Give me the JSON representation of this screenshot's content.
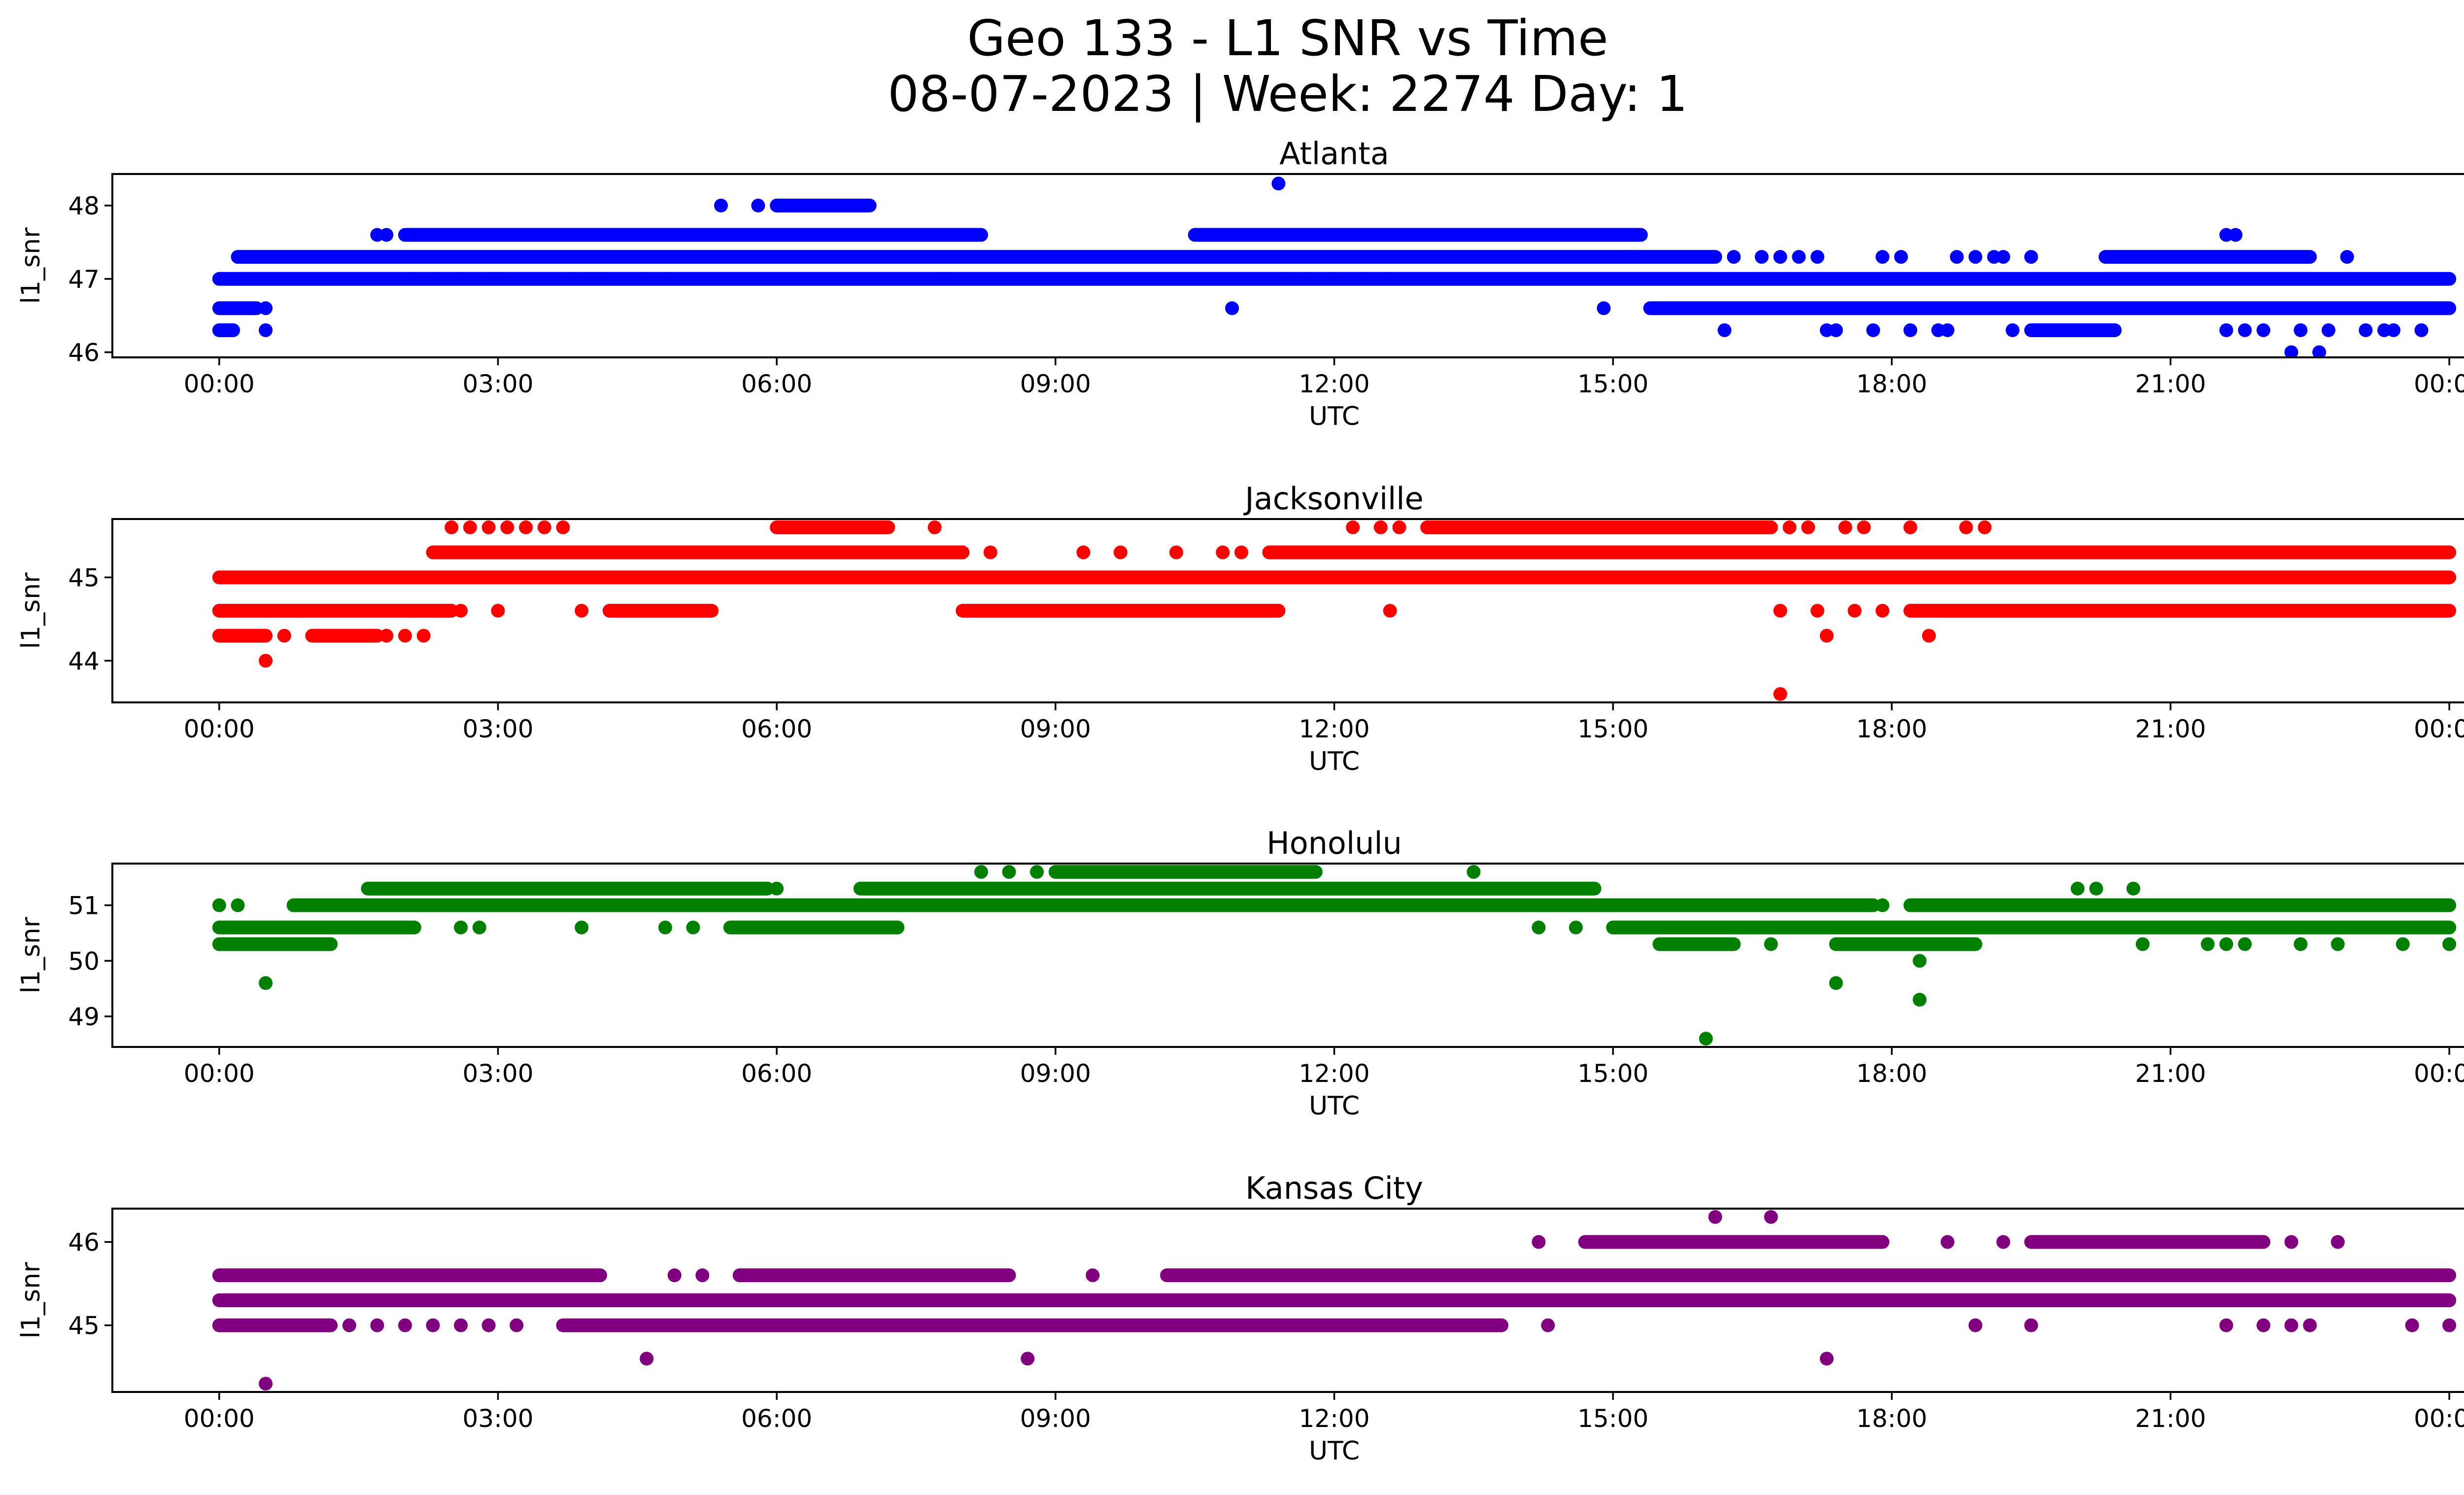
{
  "figure": {
    "title_line1": "Geo 133 - L1 SNR vs Time",
    "title_line2": "08-07-2023 | Week: 2274 Day: 1"
  },
  "chart_data": [
    {
      "type": "scatter",
      "title": "Atlanta",
      "xlabel": "UTC",
      "ylabel": "l1_snr",
      "color": "#0000ff",
      "xlim_hours": [
        -1.15,
        25.15
      ],
      "ylim": [
        45.93,
        48.43
      ],
      "yticks": [
        46,
        47,
        48
      ],
      "xtick_labels": [
        "00:00",
        "03:00",
        "06:00",
        "09:00",
        "12:00",
        "15:00",
        "18:00",
        "21:00",
        "00:00"
      ],
      "bands": [
        {
          "y": 47.3,
          "from": 0.2,
          "to": 16.1
        },
        {
          "y": 47.0,
          "from": 0.0,
          "to": 24.0
        },
        {
          "y": 46.6,
          "from": 15.4,
          "to": 24.0
        },
        {
          "y": 46.6,
          "from": 0.0,
          "to": 0.4
        },
        {
          "y": 46.3,
          "from": 0.0,
          "to": 0.15
        },
        {
          "y": 47.6,
          "from": 2.0,
          "to": 8.2
        },
        {
          "y": 47.6,
          "from": 10.5,
          "to": 15.3
        },
        {
          "y": 46.3,
          "from": 19.5,
          "to": 20.4
        },
        {
          "y": 48.0,
          "from": 6.0,
          "to": 7.0
        },
        {
          "y": 47.3,
          "from": 20.3,
          "to": 22.5
        }
      ],
      "points": [
        {
          "x": 0.5,
          "y": 46.3
        },
        {
          "x": 0.5,
          "y": 46.6
        },
        {
          "x": 1.7,
          "y": 47.6
        },
        {
          "x": 1.8,
          "y": 47.6
        },
        {
          "x": 2.1,
          "y": 47.0
        },
        {
          "x": 2.3,
          "y": 47.0
        },
        {
          "x": 2.6,
          "y": 47.0
        },
        {
          "x": 2.9,
          "y": 47.0
        },
        {
          "x": 3.0,
          "y": 47.0
        },
        {
          "x": 3.8,
          "y": 47.0
        },
        {
          "x": 4.0,
          "y": 47.0
        },
        {
          "x": 4.1,
          "y": 47.0
        },
        {
          "x": 4.6,
          "y": 47.0
        },
        {
          "x": 4.8,
          "y": 47.0
        },
        {
          "x": 5.4,
          "y": 48.0
        },
        {
          "x": 5.8,
          "y": 48.0
        },
        {
          "x": 7.8,
          "y": 47.0
        },
        {
          "x": 10.9,
          "y": 46.6
        },
        {
          "x": 11.4,
          "y": 48.3
        },
        {
          "x": 11.5,
          "y": 47.0
        },
        {
          "x": 11.7,
          "y": 47.0
        },
        {
          "x": 12.0,
          "y": 47.0
        },
        {
          "x": 12.3,
          "y": 47.0
        },
        {
          "x": 12.6,
          "y": 47.0
        },
        {
          "x": 14.9,
          "y": 46.6
        },
        {
          "x": 15.2,
          "y": 47.3
        },
        {
          "x": 16.2,
          "y": 46.3
        },
        {
          "x": 16.3,
          "y": 47.3
        },
        {
          "x": 16.6,
          "y": 47.3
        },
        {
          "x": 16.8,
          "y": 47.3
        },
        {
          "x": 17.0,
          "y": 47.3
        },
        {
          "x": 17.2,
          "y": 47.3
        },
        {
          "x": 17.3,
          "y": 46.3
        },
        {
          "x": 17.4,
          "y": 46.3
        },
        {
          "x": 17.8,
          "y": 46.3
        },
        {
          "x": 17.9,
          "y": 47.3
        },
        {
          "x": 18.1,
          "y": 47.3
        },
        {
          "x": 18.2,
          "y": 46.3
        },
        {
          "x": 18.5,
          "y": 46.3
        },
        {
          "x": 18.6,
          "y": 46.3
        },
        {
          "x": 18.7,
          "y": 47.3
        },
        {
          "x": 18.9,
          "y": 47.3
        },
        {
          "x": 19.1,
          "y": 47.3
        },
        {
          "x": 19.2,
          "y": 47.3
        },
        {
          "x": 19.3,
          "y": 46.3
        },
        {
          "x": 19.5,
          "y": 47.3
        },
        {
          "x": 21.6,
          "y": 47.6
        },
        {
          "x": 21.7,
          "y": 47.6
        },
        {
          "x": 21.6,
          "y": 46.3
        },
        {
          "x": 21.8,
          "y": 46.3
        },
        {
          "x": 22.0,
          "y": 46.3
        },
        {
          "x": 22.3,
          "y": 46.0
        },
        {
          "x": 22.6,
          "y": 46.0
        },
        {
          "x": 22.4,
          "y": 46.3
        },
        {
          "x": 22.7,
          "y": 46.3
        },
        {
          "x": 23.1,
          "y": 46.3
        },
        {
          "x": 23.3,
          "y": 46.3
        },
        {
          "x": 23.4,
          "y": 46.3
        },
        {
          "x": 22.9,
          "y": 47.3
        },
        {
          "x": 23.7,
          "y": 46.3
        }
      ]
    },
    {
      "type": "scatter",
      "title": "Jacksonville",
      "xlabel": "UTC",
      "ylabel": "l1_snr",
      "color": "#ff0000",
      "xlim_hours": [
        -1.15,
        25.15
      ],
      "ylim": [
        43.5,
        45.7
      ],
      "yticks": [
        44,
        45
      ],
      "xtick_labels": [
        "00:00",
        "03:00",
        "06:00",
        "09:00",
        "12:00",
        "15:00",
        "18:00",
        "21:00",
        "00:00"
      ],
      "bands": [
        {
          "y": 45.0,
          "from": 0.0,
          "to": 24.0
        },
        {
          "y": 44.6,
          "from": 0.0,
          "to": 2.5
        },
        {
          "y": 44.3,
          "from": 0.0,
          "to": 0.5
        },
        {
          "y": 45.3,
          "from": 2.3,
          "to": 8.0
        },
        {
          "y": 44.6,
          "from": 4.2,
          "to": 5.3
        },
        {
          "y": 44.6,
          "from": 8.0,
          "to": 11.4
        },
        {
          "y": 45.3,
          "from": 11.3,
          "to": 24.0
        },
        {
          "y": 45.6,
          "from": 13.0,
          "to": 16.7
        },
        {
          "y": 45.6,
          "from": 6.0,
          "to": 7.2
        },
        {
          "y": 44.6,
          "from": 18.2,
          "to": 24.0
        },
        {
          "y": 44.3,
          "from": 1.0,
          "to": 1.7
        }
      ],
      "points": [
        {
          "x": 0.5,
          "y": 44.0
        },
        {
          "x": 0.7,
          "y": 44.3
        },
        {
          "x": 1.8,
          "y": 44.3
        },
        {
          "x": 2.0,
          "y": 44.3
        },
        {
          "x": 2.2,
          "y": 44.3
        },
        {
          "x": 2.5,
          "y": 45.6
        },
        {
          "x": 2.7,
          "y": 45.6
        },
        {
          "x": 2.9,
          "y": 45.6
        },
        {
          "x": 3.1,
          "y": 45.6
        },
        {
          "x": 3.3,
          "y": 45.6
        },
        {
          "x": 3.5,
          "y": 45.6
        },
        {
          "x": 3.7,
          "y": 45.6
        },
        {
          "x": 2.6,
          "y": 44.6
        },
        {
          "x": 3.0,
          "y": 44.6
        },
        {
          "x": 3.9,
          "y": 44.6
        },
        {
          "x": 7.7,
          "y": 45.6
        },
        {
          "x": 8.3,
          "y": 45.3
        },
        {
          "x": 9.3,
          "y": 45.3
        },
        {
          "x": 9.7,
          "y": 45.3
        },
        {
          "x": 10.3,
          "y": 45.3
        },
        {
          "x": 10.8,
          "y": 45.3
        },
        {
          "x": 11.0,
          "y": 45.3
        },
        {
          "x": 12.2,
          "y": 45.6
        },
        {
          "x": 12.5,
          "y": 45.6
        },
        {
          "x": 12.7,
          "y": 45.6
        },
        {
          "x": 12.6,
          "y": 44.6
        },
        {
          "x": 16.8,
          "y": 43.6
        },
        {
          "x": 16.8,
          "y": 44.6
        },
        {
          "x": 17.2,
          "y": 44.6
        },
        {
          "x": 17.3,
          "y": 44.3
        },
        {
          "x": 18.4,
          "y": 44.3
        },
        {
          "x": 16.9,
          "y": 45.6
        },
        {
          "x": 17.1,
          "y": 45.6
        },
        {
          "x": 17.5,
          "y": 45.6
        },
        {
          "x": 17.7,
          "y": 45.6
        },
        {
          "x": 18.2,
          "y": 45.6
        },
        {
          "x": 18.8,
          "y": 45.6
        },
        {
          "x": 19.0,
          "y": 45.6
        },
        {
          "x": 17.6,
          "y": 44.6
        },
        {
          "x": 17.9,
          "y": 44.6
        },
        {
          "x": 21.2,
          "y": 44.6
        },
        {
          "x": 20.7,
          "y": 44.6
        }
      ]
    },
    {
      "type": "scatter",
      "title": "Honolulu",
      "xlabel": "UTC",
      "ylabel": "l1_snr",
      "color": "#008000",
      "xlim_hours": [
        -1.15,
        25.15
      ],
      "ylim": [
        48.45,
        51.75
      ],
      "yticks": [
        49,
        50,
        51
      ],
      "xtick_labels": [
        "00:00",
        "03:00",
        "06:00",
        "09:00",
        "12:00",
        "15:00",
        "18:00",
        "21:00",
        "00:00"
      ],
      "bands": [
        {
          "y": 50.6,
          "from": 0.0,
          "to": 2.1
        },
        {
          "y": 50.3,
          "from": 0.0,
          "to": 1.2
        },
        {
          "y": 51.0,
          "from": 0.8,
          "to": 17.8
        },
        {
          "y": 51.3,
          "from": 1.6,
          "to": 5.9
        },
        {
          "y": 51.3,
          "from": 6.9,
          "to": 14.8
        },
        {
          "y": 50.6,
          "from": 5.5,
          "to": 7.3
        },
        {
          "y": 50.6,
          "from": 15.0,
          "to": 24.0
        },
        {
          "y": 51.6,
          "from": 9.0,
          "to": 11.8
        },
        {
          "y": 51.0,
          "from": 18.2,
          "to": 24.0
        },
        {
          "y": 50.3,
          "from": 17.4,
          "to": 18.9
        },
        {
          "y": 50.3,
          "from": 15.5,
          "to": 16.3
        }
      ],
      "points": [
        {
          "x": 0.0,
          "y": 51.0
        },
        {
          "x": 0.2,
          "y": 51.0
        },
        {
          "x": 0.5,
          "y": 49.6
        },
        {
          "x": 1.2,
          "y": 50.3
        },
        {
          "x": 2.6,
          "y": 50.6
        },
        {
          "x": 2.8,
          "y": 50.6
        },
        {
          "x": 3.9,
          "y": 50.6
        },
        {
          "x": 4.8,
          "y": 50.6
        },
        {
          "x": 5.1,
          "y": 50.6
        },
        {
          "x": 6.0,
          "y": 51.3
        },
        {
          "x": 8.2,
          "y": 51.6
        },
        {
          "x": 8.5,
          "y": 51.6
        },
        {
          "x": 8.8,
          "y": 51.6
        },
        {
          "x": 13.5,
          "y": 51.6
        },
        {
          "x": 14.2,
          "y": 50.6
        },
        {
          "x": 14.6,
          "y": 50.6
        },
        {
          "x": 16.0,
          "y": 48.6
        },
        {
          "x": 16.7,
          "y": 50.3
        },
        {
          "x": 17.4,
          "y": 49.6
        },
        {
          "x": 17.9,
          "y": 51.0
        },
        {
          "x": 18.3,
          "y": 49.3
        },
        {
          "x": 18.3,
          "y": 50.0
        },
        {
          "x": 20.0,
          "y": 51.3
        },
        {
          "x": 20.2,
          "y": 51.3
        },
        {
          "x": 20.6,
          "y": 51.3
        },
        {
          "x": 20.7,
          "y": 50.3
        },
        {
          "x": 21.4,
          "y": 50.3
        },
        {
          "x": 21.6,
          "y": 50.3
        },
        {
          "x": 21.8,
          "y": 50.3
        },
        {
          "x": 22.4,
          "y": 50.3
        },
        {
          "x": 22.8,
          "y": 50.3
        },
        {
          "x": 23.5,
          "y": 50.3
        },
        {
          "x": 24.0,
          "y": 50.3
        }
      ]
    },
    {
      "type": "scatter",
      "title": "Kansas City",
      "xlabel": "UTC",
      "ylabel": "l1_snr",
      "color": "#800080",
      "xlim_hours": [
        -1.15,
        25.15
      ],
      "ylim": [
        44.2,
        46.4
      ],
      "yticks": [
        45,
        46
      ],
      "xtick_labels": [
        "00:00",
        "03:00",
        "06:00",
        "09:00",
        "12:00",
        "15:00",
        "18:00",
        "21:00",
        "00:00"
      ],
      "bands": [
        {
          "y": 45.3,
          "from": 0.0,
          "to": 24.0
        },
        {
          "y": 45.0,
          "from": 0.0,
          "to": 1.2
        },
        {
          "y": 45.6,
          "from": 0.0,
          "to": 4.1
        },
        {
          "y": 45.0,
          "from": 3.7,
          "to": 13.8
        },
        {
          "y": 45.6,
          "from": 5.6,
          "to": 8.5
        },
        {
          "y": 45.6,
          "from": 10.2,
          "to": 24.0
        },
        {
          "y": 46.0,
          "from": 14.7,
          "to": 17.9
        },
        {
          "y": 46.0,
          "from": 19.5,
          "to": 22.0
        },
        {
          "y": 45.3,
          "from": 17.3,
          "to": 24.0
        }
      ],
      "points": [
        {
          "x": 0.5,
          "y": 44.3
        },
        {
          "x": 1.4,
          "y": 45.0
        },
        {
          "x": 1.7,
          "y": 45.0
        },
        {
          "x": 2.0,
          "y": 45.0
        },
        {
          "x": 2.3,
          "y": 45.0
        },
        {
          "x": 2.6,
          "y": 45.0
        },
        {
          "x": 2.9,
          "y": 45.0
        },
        {
          "x": 3.2,
          "y": 45.0
        },
        {
          "x": 4.6,
          "y": 44.6
        },
        {
          "x": 4.9,
          "y": 45.6
        },
        {
          "x": 5.2,
          "y": 45.6
        },
        {
          "x": 8.7,
          "y": 44.6
        },
        {
          "x": 9.4,
          "y": 45.6
        },
        {
          "x": 14.2,
          "y": 46.0
        },
        {
          "x": 14.3,
          "y": 45.0
        },
        {
          "x": 14.8,
          "y": 45.3
        },
        {
          "x": 15.0,
          "y": 45.3
        },
        {
          "x": 16.1,
          "y": 46.3
        },
        {
          "x": 16.7,
          "y": 46.3
        },
        {
          "x": 17.3,
          "y": 44.6
        },
        {
          "x": 17.2,
          "y": 45.3
        },
        {
          "x": 18.6,
          "y": 46.0
        },
        {
          "x": 18.9,
          "y": 45.0
        },
        {
          "x": 19.5,
          "y": 45.0
        },
        {
          "x": 19.2,
          "y": 46.0
        },
        {
          "x": 21.6,
          "y": 45.0
        },
        {
          "x": 22.0,
          "y": 45.0
        },
        {
          "x": 22.3,
          "y": 45.0
        },
        {
          "x": 22.5,
          "y": 45.0
        },
        {
          "x": 23.6,
          "y": 45.0
        },
        {
          "x": 24.0,
          "y": 45.0
        },
        {
          "x": 22.3,
          "y": 46.0
        },
        {
          "x": 22.8,
          "y": 46.0
        },
        {
          "x": 21.5,
          "y": 45.3
        }
      ]
    }
  ]
}
